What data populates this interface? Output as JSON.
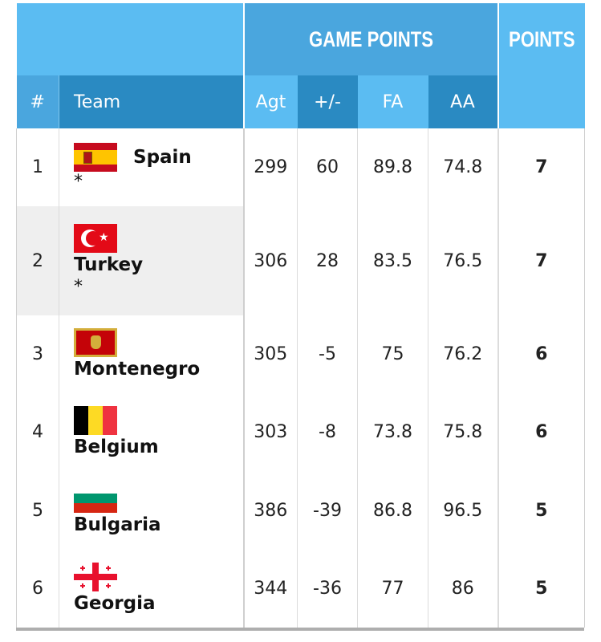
{
  "header": {
    "group_game_points": "GAME POINTS",
    "group_points": "POINTS",
    "columns": {
      "num": "#",
      "team": "Team",
      "agt": "Agt",
      "plus_minus": "+/-",
      "fa": "FA",
      "aa": "AA",
      "points": ""
    }
  },
  "rows": [
    {
      "rank": "1",
      "team": "Spain",
      "note": "*",
      "flag": "spain-flag",
      "agt": "299",
      "plus_minus": "60",
      "fa": "89.8",
      "aa": "74.8",
      "points": "7"
    },
    {
      "rank": "2",
      "team": "Turkey",
      "note": "*",
      "flag": "turkey-flag",
      "agt": "306",
      "plus_minus": "28",
      "fa": "83.5",
      "aa": "76.5",
      "points": "7"
    },
    {
      "rank": "3",
      "team": "Montenegro",
      "note": "",
      "flag": "montenegro-flag",
      "agt": "305",
      "plus_minus": "-5",
      "fa": "75",
      "aa": "76.2",
      "points": "6"
    },
    {
      "rank": "4",
      "team": "Belgium",
      "note": "",
      "flag": "belgium-flag",
      "agt": "303",
      "plus_minus": "-8",
      "fa": "73.8",
      "aa": "75.8",
      "points": "6"
    },
    {
      "rank": "5",
      "team": "Bulgaria",
      "note": "",
      "flag": "bulgaria-flag",
      "agt": "386",
      "plus_minus": "-39",
      "fa": "86.8",
      "aa": "96.5",
      "points": "5"
    },
    {
      "rank": "6",
      "team": "Georgia",
      "note": "",
      "flag": "georgia-flag",
      "agt": "344",
      "plus_minus": "-36",
      "fa": "77",
      "aa": "86",
      "points": "5"
    }
  ],
  "colors": {
    "header_light": "#5bbcf2",
    "header_mid": "#4aa6de",
    "header_dark": "#2a8ac2",
    "row_highlight": "#efefef"
  }
}
